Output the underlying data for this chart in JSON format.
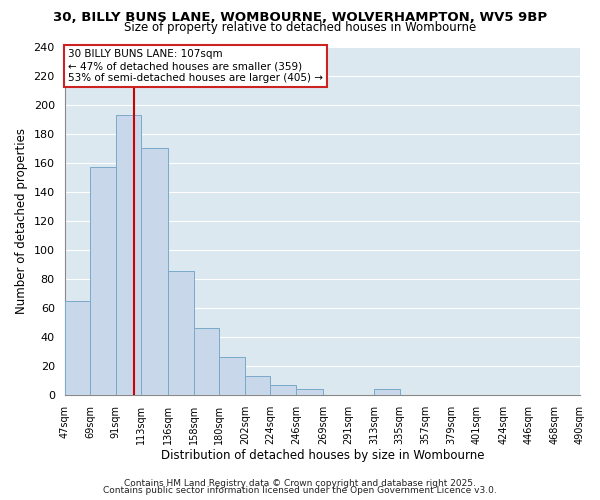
{
  "title": "30, BILLY BUNS LANE, WOMBOURNE, WOLVERHAMPTON, WV5 9BP",
  "subtitle": "Size of property relative to detached houses in Wombourne",
  "xlabel": "Distribution of detached houses by size in Wombourne",
  "ylabel": "Number of detached properties",
  "bar_color": "#c8d8ea",
  "bar_edge_color": "#7aaac8",
  "background_color": "#ffffff",
  "axes_bg_color": "#dce8f0",
  "grid_color": "#ffffff",
  "vline_x": 107,
  "vline_color": "#cc0000",
  "annotation_text": "30 BILLY BUNS LANE: 107sqm\n← 47% of detached houses are smaller (359)\n53% of semi-detached houses are larger (405) →",
  "annotation_box_color": "#ffffff",
  "annotation_box_edge": "#cc2222",
  "footer1": "Contains HM Land Registry data © Crown copyright and database right 2025.",
  "footer2": "Contains public sector information licensed under the Open Government Licence v3.0.",
  "bin_edges": [
    47,
    69,
    91,
    113,
    136,
    158,
    180,
    202,
    224,
    246,
    269,
    291,
    313,
    335,
    357,
    379,
    401,
    424,
    446,
    468,
    490
  ],
  "bin_counts": [
    65,
    157,
    193,
    170,
    85,
    46,
    26,
    13,
    7,
    4,
    0,
    0,
    4,
    0,
    0,
    0,
    0,
    0,
    0,
    0
  ],
  "tick_labels": [
    "47sqm",
    "69sqm",
    "91sqm",
    "113sqm",
    "136sqm",
    "158sqm",
    "180sqm",
    "202sqm",
    "224sqm",
    "246sqm",
    "269sqm",
    "291sqm",
    "313sqm",
    "335sqm",
    "357sqm",
    "379sqm",
    "401sqm",
    "424sqm",
    "446sqm",
    "468sqm",
    "490sqm"
  ],
  "ylim": [
    0,
    240
  ],
  "yticks": [
    0,
    20,
    40,
    60,
    80,
    100,
    120,
    140,
    160,
    180,
    200,
    220,
    240
  ]
}
